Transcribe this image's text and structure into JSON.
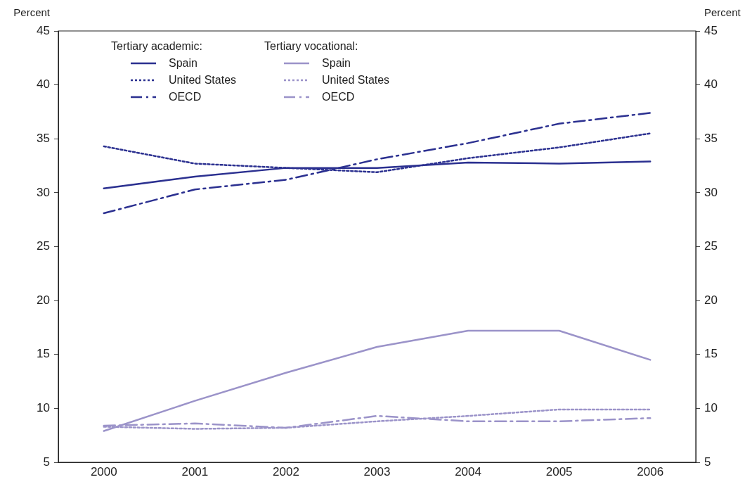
{
  "chart_data": {
    "type": "line",
    "categories": [
      "2000",
      "2001",
      "2002",
      "2003",
      "2004",
      "2005",
      "2006"
    ],
    "ylabel": "Percent",
    "y2label": "Percent",
    "ylim": [
      5,
      45
    ],
    "yticks": [
      5,
      10,
      15,
      20,
      25,
      30,
      35,
      40,
      45
    ],
    "y2lim": [
      5,
      45
    ],
    "y2ticks": [
      5,
      10,
      15,
      20,
      25,
      30,
      35,
      40,
      45
    ],
    "grid": false,
    "legend": "top left",
    "legend_title": [
      "Tertiary academic:",
      "Tertiary vocational:"
    ],
    "marker": "none",
    "series": [
      {
        "name": "Spain",
        "color": "#2b3090",
        "line_style": "solid",
        "values": [
          30.4,
          31.5,
          32.3,
          32.3,
          32.8,
          32.7,
          32.9
        ]
      },
      {
        "name": "United States",
        "color": "#2b3090",
        "line_style": "dotted",
        "values": [
          34.3,
          32.7,
          32.3,
          31.9,
          33.2,
          34.2,
          35.5
        ]
      },
      {
        "name": "OECD",
        "color": "#2b3090",
        "line_style": "dashdot",
        "values": [
          28.1,
          30.3,
          31.2,
          33.1,
          34.6,
          36.4,
          37.4
        ]
      },
      {
        "name": "Spain",
        "color": "#9b93c9",
        "line_style": "solid",
        "values": [
          7.9,
          10.7,
          13.3,
          15.7,
          17.2,
          17.2,
          14.5
        ]
      },
      {
        "name": "United States",
        "color": "#9b93c9",
        "line_style": "dotted",
        "values": [
          8.3,
          8.1,
          8.2,
          8.8,
          9.3,
          9.9,
          9.9
        ]
      },
      {
        "name": "OECD",
        "color": "#9b93c9",
        "line_style": "dashdot",
        "values": [
          8.4,
          8.6,
          8.2,
          9.3,
          8.8,
          8.8,
          9.1
        ]
      }
    ]
  }
}
